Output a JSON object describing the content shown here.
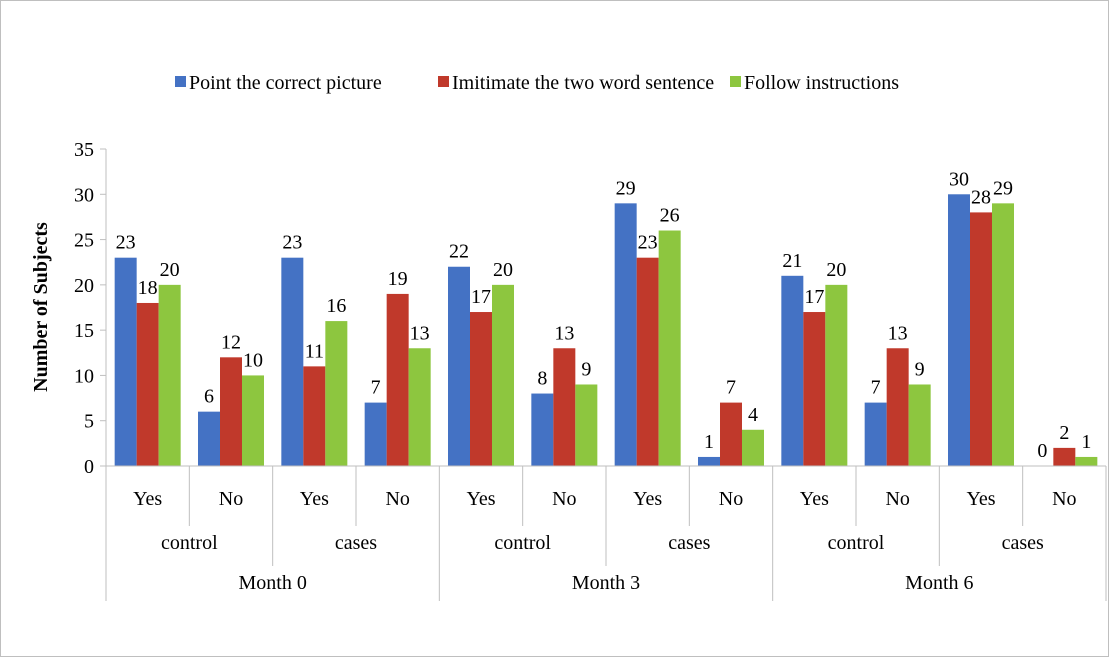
{
  "chart_data": {
    "type": "bar",
    "ylabel": "Number of Subjects",
    "ylim": [
      0,
      35
    ],
    "yticks": [
      0,
      5,
      10,
      15,
      20,
      25,
      30,
      35
    ],
    "grid": false,
    "legend_position": "top",
    "categories": [
      {
        "month": "Month 0",
        "group": "control",
        "answer": "Yes"
      },
      {
        "month": "Month 0",
        "group": "control",
        "answer": "No"
      },
      {
        "month": "Month 0",
        "group": "cases",
        "answer": "Yes"
      },
      {
        "month": "Month 0",
        "group": "cases",
        "answer": "No"
      },
      {
        "month": "Month 3",
        "group": "control",
        "answer": "Yes"
      },
      {
        "month": "Month 3",
        "group": "control",
        "answer": "No"
      },
      {
        "month": "Month 3",
        "group": "cases",
        "answer": "Yes"
      },
      {
        "month": "Month 3",
        "group": "cases",
        "answer": "No"
      },
      {
        "month": "Month 6",
        "group": "control",
        "answer": "Yes"
      },
      {
        "month": "Month 6",
        "group": "control",
        "answer": "No"
      },
      {
        "month": "Month 6",
        "group": "cases",
        "answer": "Yes"
      },
      {
        "month": "Month 6",
        "group": "cases",
        "answer": "No"
      }
    ],
    "groups": [
      "control",
      "cases",
      "control",
      "cases",
      "control",
      "cases"
    ],
    "months": [
      "Month 0",
      "Month 3",
      "Month 6"
    ],
    "series": [
      {
        "name": "Point the correct picture",
        "color": "#4472c4",
        "values": [
          23,
          6,
          23,
          7,
          22,
          8,
          29,
          1,
          21,
          7,
          30,
          0
        ]
      },
      {
        "name": "Imitimate the two word sentence",
        "color": "#c0392b",
        "values": [
          18,
          12,
          11,
          19,
          17,
          13,
          23,
          7,
          17,
          13,
          28,
          2
        ]
      },
      {
        "name": "Follow instructions",
        "color": "#8dc63f",
        "values": [
          20,
          10,
          16,
          13,
          20,
          9,
          26,
          4,
          20,
          9,
          29,
          1
        ]
      }
    ]
  }
}
